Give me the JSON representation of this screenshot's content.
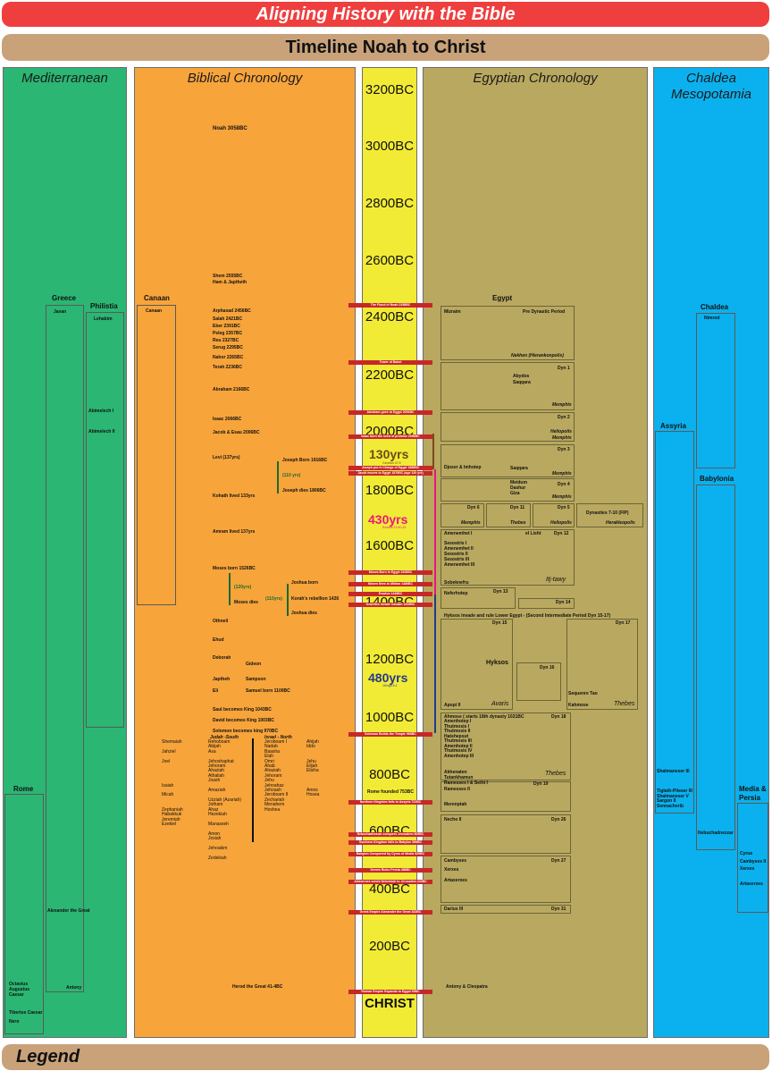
{
  "title": "Aligning History with the Bible",
  "subtitle": "Timeline Noah to Christ",
  "legend": "Legend",
  "columns": {
    "mediterranean": "Mediterranean",
    "biblical": "Biblical Chronology",
    "egyptian": "Egyptian Chronology",
    "chaldea": "Chaldea Mesopotamia"
  },
  "years": [
    "3200BC",
    "3000BC",
    "2800BC",
    "2600BC",
    "2400BC",
    "2200BC",
    "2000BC",
    "1800BC",
    "1600BC",
    "1400BC",
    "1200BC",
    "1000BC",
    "800BC",
    "600BC",
    "400BC",
    "200BC",
    "CHRIST"
  ],
  "spans": {
    "s130": "130yrs",
    "s130_note": "Genesis 47:9",
    "s430": "430yrs",
    "s430_note": "Exodus 12:40-41",
    "s480": "480yrs",
    "s480_note": "1Kings 6:1"
  },
  "events": [
    "The Flood of Noah 2458BC",
    "Tower of Babel",
    "Abraham goes to Egypt 2091BC",
    "Isaac born the seed of promise 2066BC",
    "Joseph put in Charge of Egypt 1886BC",
    "Jacob moves to Egypt 1876BC (age 130 yrs)",
    "Moses Born in Egypt 1526BC",
    "Moses flees to Midian 1486BC",
    "Exodus 1446BC",
    "Israelites Invade Canaan 1406BC",
    "Solomon Builds the Temple 966BC",
    "Northern Kingdom falls to Assyria 722BC",
    "Nebuchadnezzar conquers Jerusalem 605BC",
    "Southern Kingdom falls to Babylon 586BC",
    "Babylon Conquered by Cyrus of Media 539BC",
    "Xerxes Rules Persia 486BC",
    "Artaxerxes sends Nehemiah to Jerusalem 444BC",
    "Greek Empire Alexander the Great 332BC",
    "Roman Empire Expands to Egypt 30BC"
  ],
  "med": {
    "greece": "Greece",
    "javan": "Javan",
    "philistia": "Philistia",
    "lehabim": "Lehabim",
    "abimelech1": "Abimelech I",
    "abimelech2": "Abimelech II",
    "rome": "Rome",
    "alexander": "Alexander the Great",
    "antony": "Antony",
    "octavius": "Octavius Augustus Caesar",
    "tiberius": "Tiberius Caesar",
    "nero": "Nero"
  },
  "bib": {
    "canaan_head": "Canaan",
    "canaan": "Canaan",
    "noah": "Noah 3058BC",
    "shem": "Shem 2555BC",
    "ham": "Ham & Japtheth",
    "arphaxad": "Arphaxad 2456BC",
    "salah": "Salah 2421BC",
    "eber": "Eber 2391BC",
    "peleg": "Peleg 2357BC",
    "reu": "Reu 2327BC",
    "serug": "Serug 2295BC",
    "nahor": "Nahor 2265BC",
    "terah": "Terah 2236BC",
    "abraham": "Abraham 2166BC",
    "isaac": "Isaac 2066BC",
    "jacob": "Jacob & Esau 2006BC",
    "levi": "Levi (137yrs)",
    "joseph_born": "Joseph Born 1916BC",
    "joseph_span": "(110 yrs)",
    "joseph_dies": "Joseph dies 1806BC",
    "kohath": "Kohath lived 133yrs",
    "amram": "Amram lived 137yrs",
    "moses_born": "Moses born 1526BC",
    "moses_span": "(120yrs)",
    "moses_dies": "Moses dies",
    "joshua_born": "Joshua born",
    "joshua_span": "(110yrs)",
    "korah": "Korah's rebellion 1426",
    "joshua_dies": "Joshua dies",
    "othniel": "Othneil",
    "ehud": "Ehud",
    "deborah": "Deborah",
    "gideon": "Gideon",
    "japtheh": "Japtheh",
    "sampson": "Sampson",
    "eli": "Eli",
    "samuel": "Samuel born 1100BC",
    "saul": "Saul becomes King 1043BC",
    "david": "David becomes King 1003BC",
    "solomon": "Solomon becomes king 970BC",
    "judah_head": "Judah -South",
    "israel_head": "Israel - North",
    "judah": "Rehoboam\nAbijah\nAsa\n\nJehoshaphat\nJehoram\nAhaziah\nAthaliah\nJoash\n\nAmaziah\n\nUzziah (Azariah)\nJotham\nAhaz\nHezekiah\n\nManasseh\n\nAmon\nJosiah\n\nJehoakim\n\nZedekiah",
    "israel": "Jeroboam I\nNadab\nBaasha\nElah\nOmri\nAhab\nAhaziah\nJehoram\nJehu\nJehoahaz\nJehoash\nJeroboam II\nZechariah\nMenahem\nHoshea",
    "prophets_left": "Shemaiah\n\nJahziel\n\nJoel\n\n\n\n\nIsaiah\n\nMicah\n\n\nZephaniah\nHabakkuk\nJeremiah\nEzekiel",
    "prophets_right": "Ahijah\nIddo\n\n\nJehu\nElijah\nElisha\n\n\n\nAmos\nHosea",
    "rome_founded": "Rome founded 753BC",
    "herod": "Herod the Great  41-4BC"
  },
  "egy": {
    "egypt": "Egypt",
    "mizraim": "Mizraim",
    "predynastic": "Pre Dynastic Period",
    "nekhen": "Nekhen (Hierankonpolis)",
    "dyn1": "Dyn 1",
    "abydos": "Abydos",
    "saqqara1": "Saqqara",
    "memphis1": "Memphis",
    "dyn2": "Dyn 2",
    "heliopolis1": "Heliopolis",
    "memphis2": "Memphis",
    "dyn3": "Dyn 3",
    "djoser": "Djoser & Imhotep",
    "saqqara2": "Saqqara",
    "memphis3": "Memphis",
    "dyn4": "Dyn 4",
    "meidum": "Meidum",
    "dashur": "Dashur",
    "giza": "Giza",
    "memphis4": "Memphis",
    "dyn6": "Dyn 6",
    "memphis5": "Memphis",
    "dyn11": "Dyn 11",
    "thebes1": "Thebes",
    "dyn5": "Dyn 5",
    "heliopolis2": "Heliopolis",
    "fip": "Dynasties 7-10 (FIP)",
    "herakleopolis": "Herakleopolis",
    "amenemhet1": "Amenemhet I",
    "ellisht": "el Lisht",
    "dyn12": "Dyn 12",
    "dyn12_list": "Sesostris I\nAmenemhet II\nSesostris II\nSesostris III\nAmenemhet III",
    "sobeknefru": "Sobeknefru",
    "itjtawy": "Itj-tawy",
    "neferhotep": "Neferhotep",
    "dyn13": "Dyn 13",
    "dyn14": "Dyn 14",
    "hyksos_invade": "Hyksos invade and rule Lower Egypt - (Second Intermediate Period  Dyn 15-17)",
    "dyn15": "Dyn 15",
    "hyksos": "Hyksos",
    "dyn16": "Dyn 16",
    "dyn17": "Dyn 17",
    "apopi": "Apopi II",
    "avaris": "Avaris",
    "sequenre": "Sequenre Tao",
    "kahmose": "Kahmose",
    "thebes2": "Thebes",
    "ahmose": "Ahmose ( starts 18th dynasty 1021BC",
    "dyn18": "Dyn 18",
    "dyn18_list": "Amenhotep I\nThutmosis I\nThutmosis II\nHatshepsut\nThutmosis III\nAmenhotep II\nThutmosis IV\nAmenhotep III",
    "akhenaten": "Akhenaten",
    "tutankhamun": "Tutankhamun",
    "ramesses": "Ramesses I & Sethi I",
    "dyn19": "Dyn 19",
    "ramesses2": "Ramesses II",
    "thebes3": "Thebes",
    "merenptah": "Merenptah",
    "necho": "Necho II",
    "dyn26": "Dyn 26",
    "cambyses": "Cambyses",
    "dyn27": "Dyn 27",
    "xerxes": "Xerxes",
    "artaxerxes": "Artaxerxes",
    "darius": "Darius III",
    "dyn31": "Dyn 31",
    "antony": "Antony & Cleopatra"
  },
  "chal": {
    "chaldea": "Chaldea",
    "nimrod": "Nimrod",
    "assyria": "Assyria",
    "babylonia": "Babylonia",
    "shalmaneser3": "Shalmaneser III",
    "assyria_kings": "Tiglath-Pileser III\nShalmaneser V\nSargon II\nSennacherib",
    "nebuchadnezzar": "Nebuchadnezzar",
    "media": "Media &\nPersia",
    "media_kings": "Cyrus\nCambyses II\nXerxes\n\nArtaxerxes"
  },
  "colors": {
    "title_red": "#ef3e3e",
    "banner": "#c9a27a",
    "green": "#2bb673",
    "orange": "#f7a43b",
    "yellow": "#f2eb35",
    "olive": "#b9a85f",
    "blue": "#0bb1ee",
    "magenta": "#e8177f",
    "navy": "#243a8c"
  }
}
